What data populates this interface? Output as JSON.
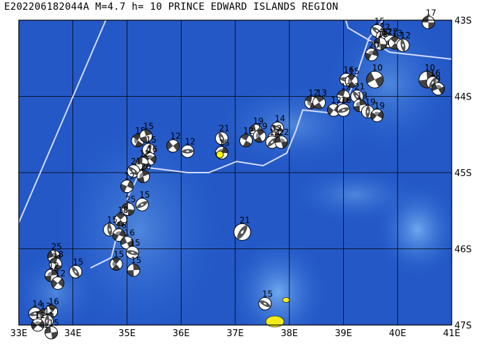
{
  "title": "E202206182044A M=4.7 h= 10 PRINCE EDWARD ISLANDS REGION",
  "x_axis_labels": [
    "33E",
    "34E",
    "35E",
    "36E",
    "37E",
    "38E",
    "39E",
    "40E",
    "41E"
  ],
  "y_axis_labels": [
    "43S",
    "44S",
    "45S",
    "46S",
    "47S"
  ],
  "colors": {
    "ocean_deep": "#1f56c8",
    "ocean_shallow": "#5a9ae6",
    "grid": "#000000",
    "ridge": "#d0d8ff",
    "island": "#f2ec1a",
    "epicenter": "#ffff00"
  },
  "events": [
    {
      "label": "17",
      "lon": 40.57,
      "lat": -43.03
    },
    {
      "label": "15",
      "lon": 39.62,
      "lat": -43.14
    },
    {
      "label": "22",
      "lon": 39.72,
      "lat": -43.22
    },
    {
      "label": "12",
      "lon": 39.76,
      "lat": -43.28
    },
    {
      "label": "12",
      "lon": 39.86,
      "lat": -43.28
    },
    {
      "label": "12",
      "lon": 39.68,
      "lat": -43.31
    },
    {
      "label": "13",
      "lon": 39.95,
      "lat": -43.3
    },
    {
      "label": "12",
      "lon": 40.1,
      "lat": -43.33
    },
    {
      "label": "20",
      "lon": 39.52,
      "lat": -43.45
    },
    {
      "label": "10",
      "lon": 39.58,
      "lat": -43.78
    },
    {
      "label": "16",
      "lon": 39.05,
      "lat": -43.78
    },
    {
      "label": "15",
      "lon": 39.15,
      "lat": -43.8
    },
    {
      "label": "10",
      "lon": 40.55,
      "lat": -43.78
    },
    {
      "label": "16",
      "lon": 40.65,
      "lat": -43.82
    },
    {
      "label": "9",
      "lon": 40.75,
      "lat": -43.9
    },
    {
      "label": "12",
      "lon": 39.0,
      "lat": -44.0
    },
    {
      "label": "21",
      "lon": 39.25,
      "lat": -44.0
    },
    {
      "label": "13",
      "lon": 39.3,
      "lat": -44.12
    },
    {
      "label": "12",
      "lon": 38.82,
      "lat": -44.18
    },
    {
      "label": "16",
      "lon": 39.0,
      "lat": -44.18
    },
    {
      "label": "12",
      "lon": 38.4,
      "lat": -44.08
    },
    {
      "label": "13",
      "lon": 38.55,
      "lat": -44.08
    },
    {
      "label": "19",
      "lon": 39.45,
      "lat": -44.2
    },
    {
      "label": "19",
      "lon": 39.62,
      "lat": -44.25
    },
    {
      "label": "19",
      "lon": 37.38,
      "lat": -44.45
    },
    {
      "label": "14",
      "lon": 37.78,
      "lat": -44.42
    },
    {
      "label": "19",
      "lon": 37.45,
      "lat": -44.52
    },
    {
      "label": "12",
      "lon": 37.72,
      "lat": -44.55
    },
    {
      "label": "13",
      "lon": 37.68,
      "lat": -44.6
    },
    {
      "label": "22",
      "lon": 37.85,
      "lat": -44.6
    },
    {
      "label": "12",
      "lon": 37.2,
      "lat": -44.58
    },
    {
      "label": "21",
      "lon": 36.75,
      "lat": -44.55
    },
    {
      "label": "15",
      "lon": 36.75,
      "lat": -44.74
    },
    {
      "label": "12",
      "lon": 35.85,
      "lat": -44.65
    },
    {
      "label": "12",
      "lon": 36.12,
      "lat": -44.72
    },
    {
      "label": "15",
      "lon": 35.2,
      "lat": -44.58
    },
    {
      "label": "15",
      "lon": 35.35,
      "lat": -44.52
    },
    {
      "label": "15",
      "lon": 35.4,
      "lat": -44.7
    },
    {
      "label": "16",
      "lon": 35.42,
      "lat": -44.82
    },
    {
      "label": "12",
      "lon": 35.28,
      "lat": -44.88
    },
    {
      "label": "21",
      "lon": 35.12,
      "lat": -44.98
    },
    {
      "label": "20",
      "lon": 35.3,
      "lat": -45.05
    },
    {
      "label": "12",
      "lon": 35.0,
      "lat": -45.18
    },
    {
      "label": "15",
      "lon": 35.28,
      "lat": -45.42
    },
    {
      "label": "25",
      "lon": 35.02,
      "lat": -45.48
    },
    {
      "label": "18",
      "lon": 34.88,
      "lat": -45.62
    },
    {
      "label": "15",
      "lon": 34.68,
      "lat": -45.75
    },
    {
      "label": "16",
      "lon": 34.85,
      "lat": -45.82
    },
    {
      "label": "16",
      "lon": 35.0,
      "lat": -45.92
    },
    {
      "label": "15",
      "lon": 35.1,
      "lat": -46.05
    },
    {
      "label": "15",
      "lon": 34.8,
      "lat": -46.2
    },
    {
      "label": "15",
      "lon": 35.12,
      "lat": -46.28
    },
    {
      "label": "21",
      "lon": 37.13,
      "lat": -45.78
    },
    {
      "label": "25",
      "lon": 33.65,
      "lat": -46.1
    },
    {
      "label": "18",
      "lon": 33.68,
      "lat": -46.2
    },
    {
      "label": "15",
      "lon": 34.05,
      "lat": -46.3
    },
    {
      "label": "12",
      "lon": 33.6,
      "lat": -46.35
    },
    {
      "label": "12",
      "lon": 33.72,
      "lat": -46.45
    },
    {
      "label": "14",
      "lon": 33.3,
      "lat": -46.85
    },
    {
      "label": "13",
      "lon": 33.45,
      "lat": -46.88
    },
    {
      "label": "16",
      "lon": 33.6,
      "lat": -46.82
    },
    {
      "label": "12",
      "lon": 33.52,
      "lat": -46.95
    },
    {
      "label": "12",
      "lon": 33.35,
      "lat": -47.0
    },
    {
      "label": "15",
      "lon": 33.6,
      "lat": -47.1
    },
    {
      "label": "15",
      "lon": 37.55,
      "lat": -46.72
    }
  ]
}
